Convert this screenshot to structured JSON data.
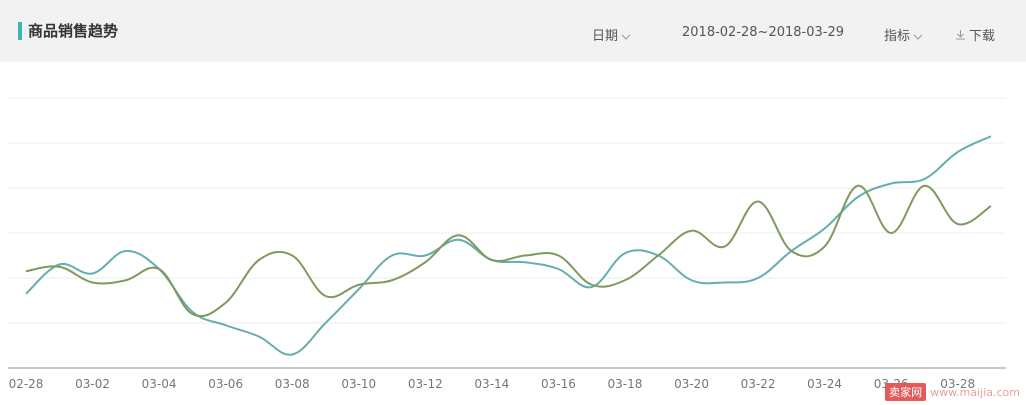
{
  "header": {
    "title": "商品销售趋势",
    "date_label": "日期",
    "date_range": "2018-02-28~2018-03-29",
    "metric_label": "指标",
    "download_label": "下载"
  },
  "watermark": {
    "logo_text": "卖家网",
    "site": "www.maijia.com"
  },
  "colors": {
    "series_a": "#63aeae",
    "series_b": "#7f9a5e",
    "accent": "#3fb6b6"
  },
  "chart_data": {
    "type": "line",
    "title": "",
    "xlabel": "",
    "ylabel": "",
    "ylim": [
      0,
      6
    ],
    "grid": true,
    "x": [
      "02-28",
      "03-01",
      "03-02",
      "03-03",
      "03-04",
      "03-05",
      "03-06",
      "03-07",
      "03-08",
      "03-09",
      "03-10",
      "03-11",
      "03-12",
      "03-13",
      "03-14",
      "03-15",
      "03-16",
      "03-17",
      "03-18",
      "03-19",
      "03-20",
      "03-21",
      "03-22",
      "03-23",
      "03-24",
      "03-25",
      "03-26",
      "03-27",
      "03-28",
      "03-29"
    ],
    "tick_labels": [
      "02-28",
      "03-02",
      "03-04",
      "03-06",
      "03-08",
      "03-10",
      "03-12",
      "03-14",
      "03-16",
      "03-18",
      "03-20",
      "03-22",
      "03-24",
      "03-26",
      "03-28"
    ],
    "series": [
      {
        "values": [
          1.65,
          2.3,
          2.1,
          2.6,
          2.2,
          1.25,
          0.95,
          0.7,
          0.3,
          1.0,
          1.75,
          2.5,
          2.5,
          2.85,
          2.4,
          2.35,
          2.2,
          1.8,
          2.55,
          2.5,
          1.95,
          1.9,
          2.0,
          2.6,
          3.1,
          3.8,
          4.1,
          4.2,
          4.8,
          5.15
        ]
      },
      {
        "values": [
          2.15,
          2.25,
          1.9,
          1.95,
          2.2,
          1.2,
          1.45,
          2.4,
          2.5,
          1.6,
          1.85,
          1.95,
          2.35,
          2.95,
          2.4,
          2.5,
          2.5,
          1.85,
          1.95,
          2.5,
          3.05,
          2.7,
          3.7,
          2.6,
          2.7,
          4.05,
          3.0,
          4.05,
          3.2,
          3.6
        ]
      }
    ]
  }
}
